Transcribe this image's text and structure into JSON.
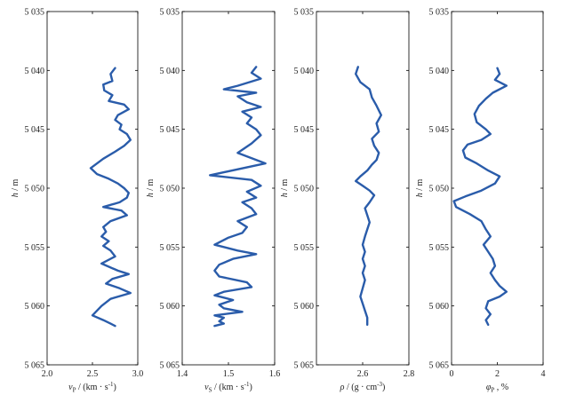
{
  "chart_data": [
    {
      "type": "line",
      "xlabel": "vP / (km · s⁻¹)",
      "xlabel_sym": "v",
      "xlabel_sub": "P",
      "xlabel_unit": " / (km · s",
      "xlabel_sup": "-1",
      "xlabel_tail": ")",
      "ylabel": "h / m",
      "xlim": [
        2.0,
        3.0
      ],
      "ylim": [
        5035,
        5065
      ],
      "y_inverted": true,
      "xticks": [
        "2.0",
        "2.5",
        "3.0"
      ],
      "yticks": [
        "5 035",
        "5 040",
        "5 045",
        "5 050",
        "5 055",
        "5 060",
        "5 065"
      ],
      "color": "#2a5caa",
      "series": [
        {
          "x": [
            2.75,
            2.7,
            2.72,
            2.62,
            2.63,
            2.72,
            2.68,
            2.85,
            2.9,
            2.78,
            2.75,
            2.82,
            2.8,
            2.88,
            2.92,
            2.85,
            2.75,
            2.62,
            2.48,
            2.55,
            2.68,
            2.78,
            2.85,
            2.9,
            2.88,
            2.8,
            2.62,
            2.82,
            2.88,
            2.7,
            2.62,
            2.65,
            2.6,
            2.68,
            2.62,
            2.7,
            2.75,
            2.6,
            2.78,
            2.9,
            2.72,
            2.65,
            2.8,
            2.92,
            2.7,
            2.6,
            2.5,
            2.62,
            2.7,
            2.75
          ],
          "y": [
            5039.8,
            5040.3,
            5040.9,
            5041.2,
            5041.7,
            5042.1,
            5042.6,
            5042.9,
            5043.3,
            5043.8,
            5044.2,
            5044.6,
            5045.0,
            5045.4,
            5045.9,
            5046.4,
            5046.9,
            5047.5,
            5048.3,
            5048.8,
            5049.2,
            5049.6,
            5050.0,
            5050.4,
            5050.8,
            5051.2,
            5051.6,
            5051.9,
            5052.3,
            5052.8,
            5053.3,
            5053.7,
            5054.1,
            5054.5,
            5054.9,
            5055.3,
            5055.8,
            5056.4,
            5057.0,
            5057.3,
            5057.7,
            5058.1,
            5058.5,
            5058.9,
            5059.4,
            5060.0,
            5060.8,
            5061.2,
            5061.5,
            5061.7
          ]
        }
      ]
    },
    {
      "type": "line",
      "xlabel": "vS / (km · s⁻¹)",
      "xlabel_sym": "v",
      "xlabel_sub": "S",
      "xlabel_unit": " / (km · s",
      "xlabel_sup": "-1",
      "xlabel_tail": ")",
      "ylabel": "h / m",
      "xlim": [
        1.4,
        1.6
      ],
      "ylim": [
        5035,
        5065
      ],
      "y_inverted": true,
      "xticks": [
        "1.4",
        "1.5",
        "1.6"
      ],
      "yticks": [
        "5 035",
        "5 040",
        "5 045",
        "5 050",
        "5 055",
        "5 060",
        "5 065"
      ],
      "color": "#2a5caa",
      "series": [
        {
          "x": [
            1.56,
            1.55,
            1.57,
            1.52,
            1.49,
            1.56,
            1.52,
            1.54,
            1.57,
            1.53,
            1.55,
            1.54,
            1.56,
            1.57,
            1.55,
            1.52,
            1.58,
            1.46,
            1.55,
            1.57,
            1.54,
            1.56,
            1.53,
            1.55,
            1.56,
            1.52,
            1.54,
            1.53,
            1.5,
            1.47,
            1.52,
            1.56,
            1.51,
            1.48,
            1.47,
            1.48,
            1.54,
            1.55,
            1.49,
            1.47,
            1.51,
            1.48,
            1.49,
            1.53,
            1.47,
            1.49,
            1.48,
            1.49,
            1.47
          ],
          "y": [
            5039.7,
            5040.2,
            5040.7,
            5041.3,
            5041.6,
            5041.9,
            5042.2,
            5042.7,
            5043.1,
            5043.5,
            5044.0,
            5044.5,
            5045.0,
            5045.5,
            5046.2,
            5047.0,
            5047.9,
            5048.9,
            5049.3,
            5049.8,
            5050.3,
            5050.8,
            5051.2,
            5051.7,
            5052.2,
            5052.8,
            5053.3,
            5053.8,
            5054.2,
            5054.8,
            5055.3,
            5055.6,
            5056.0,
            5056.5,
            5057.0,
            5057.5,
            5058.0,
            5058.4,
            5058.8,
            5059.1,
            5059.5,
            5059.9,
            5060.2,
            5060.5,
            5060.8,
            5061.0,
            5061.3,
            5061.5,
            5061.7
          ]
        }
      ]
    },
    {
      "type": "line",
      "xlabel": "ρ / (g · cm⁻³)",
      "xlabel_sym": "ρ",
      "xlabel_sub": "",
      "xlabel_unit": " / (g · cm",
      "xlabel_sup": "-3",
      "xlabel_tail": ")",
      "ylabel": "h / m",
      "xlim": [
        2.4,
        2.8
      ],
      "ylim": [
        5035,
        5065
      ],
      "y_inverted": true,
      "xticks": [
        "2.6",
        "2.8"
      ],
      "xtick_values": [
        2.6,
        2.8
      ],
      "yticks": [
        "5 035",
        "5 040",
        "5 045",
        "5 050",
        "5 055",
        "5 060",
        "5 065"
      ],
      "color": "#2a5caa",
      "series": [
        {
          "x": [
            2.58,
            2.57,
            2.59,
            2.63,
            2.64,
            2.66,
            2.68,
            2.66,
            2.67,
            2.64,
            2.65,
            2.67,
            2.66,
            2.64,
            2.62,
            2.59,
            2.57,
            2.6,
            2.63,
            2.65,
            2.63,
            2.61,
            2.62,
            2.63,
            2.62,
            2.61,
            2.6,
            2.61,
            2.6,
            2.61,
            2.6,
            2.61,
            2.6,
            2.59,
            2.6,
            2.61,
            2.62,
            2.62
          ],
          "y": [
            5039.7,
            5040.3,
            5041.0,
            5041.6,
            5042.3,
            5043.0,
            5043.8,
            5044.5,
            5045.2,
            5045.8,
            5046.4,
            5047.0,
            5047.6,
            5048.0,
            5048.5,
            5049.0,
            5049.4,
            5049.8,
            5050.2,
            5050.6,
            5051.2,
            5051.7,
            5052.3,
            5052.9,
            5053.5,
            5054.1,
            5054.8,
            5055.4,
            5056.0,
            5056.6,
            5057.2,
            5057.8,
            5058.5,
            5059.2,
            5059.8,
            5060.4,
            5061.0,
            5061.6
          ]
        }
      ]
    },
    {
      "type": "line",
      "xlabel": "φP , %",
      "xlabel_sym": "φ",
      "xlabel_sub": "P",
      "xlabel_unit": " , %",
      "xlabel_sup": "",
      "xlabel_tail": "",
      "ylabel": "h / m",
      "xlim": [
        0,
        4
      ],
      "ylim": [
        5035,
        5065
      ],
      "y_inverted": true,
      "xticks": [
        "0",
        "2",
        "4"
      ],
      "yticks": [
        "5 035",
        "5 040",
        "5 045",
        "5 050",
        "5 055",
        "5 060",
        "5 065"
      ],
      "color": "#2a5caa",
      "series": [
        {
          "x": [
            2.0,
            2.1,
            1.9,
            2.4,
            1.8,
            1.5,
            1.2,
            1.0,
            1.1,
            1.5,
            1.7,
            1.3,
            0.7,
            0.5,
            0.6,
            1.1,
            1.6,
            2.1,
            1.9,
            1.3,
            0.6,
            0.1,
            0.2,
            0.8,
            1.3,
            1.5,
            1.7,
            1.4,
            1.6,
            1.8,
            1.9,
            1.7,
            1.9,
            2.1,
            2.4,
            2.1,
            1.6,
            1.5,
            1.7,
            1.5,
            1.6
          ],
          "y": [
            5039.8,
            5040.3,
            5040.8,
            5041.3,
            5041.9,
            5042.4,
            5043.0,
            5043.7,
            5044.4,
            5045.0,
            5045.4,
            5045.9,
            5046.3,
            5046.8,
            5047.4,
            5047.9,
            5048.5,
            5049.0,
            5049.6,
            5050.2,
            5050.7,
            5051.1,
            5051.6,
            5052.2,
            5052.8,
            5053.5,
            5054.1,
            5054.8,
            5055.4,
            5056.0,
            5056.6,
            5057.2,
            5057.8,
            5058.3,
            5058.8,
            5059.2,
            5059.6,
            5060.2,
            5060.7,
            5061.2,
            5061.6
          ]
        }
      ]
    }
  ]
}
